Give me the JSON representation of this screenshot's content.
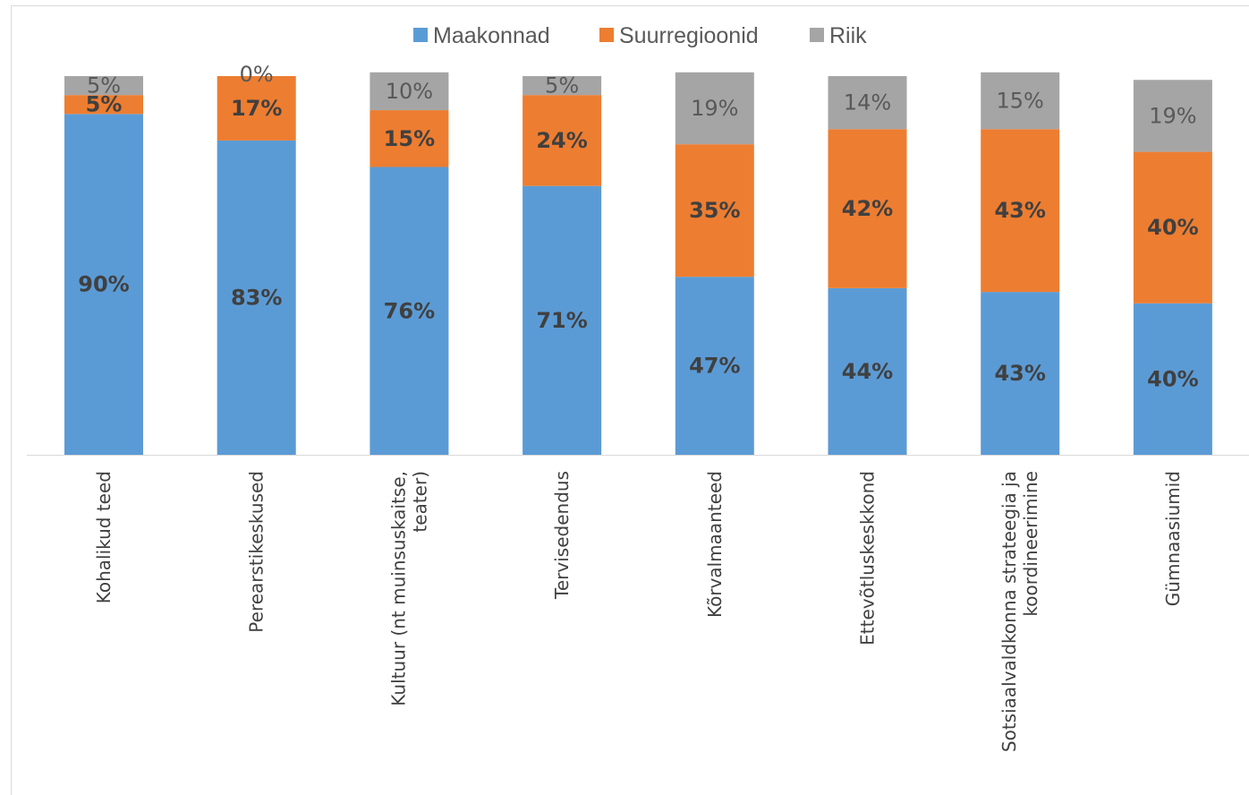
{
  "chart_data": {
    "type": "bar",
    "stacked": true,
    "percent_stacked": true,
    "categories": [
      "Kohalikud teed",
      "Perearstikeskused",
      "Kultuur (nt muinsuskaitse, teater)",
      "Tervisedendus",
      "Kõrvalmaanteed",
      "Ettevõtluskeskkond",
      "Sotsiaalvaldkonna strateegia ja koordineerimine",
      "Gümnaasiumid"
    ],
    "series": [
      {
        "name": "Maakonnad",
        "color": "#5B9BD5",
        "values": [
          90,
          83,
          76,
          71,
          47,
          44,
          43,
          40
        ],
        "labels": [
          "90%",
          "83%",
          "76%",
          "71%",
          "47%",
          "44%",
          "43%",
          "40%"
        ],
        "label_style": "bold"
      },
      {
        "name": "Suurregioonid",
        "color": "#ED7D31",
        "values": [
          5,
          17,
          15,
          24,
          35,
          42,
          43,
          40
        ],
        "labels": [
          "5%",
          "17%",
          "15%",
          "24%",
          "35%",
          "42%",
          "43%",
          "40%"
        ],
        "label_style": "bold"
      },
      {
        "name": "Riik",
        "color": "#A5A5A5",
        "values": [
          5,
          0,
          10,
          5,
          19,
          14,
          15,
          19
        ],
        "labels": [
          "5%",
          "0%",
          "10%",
          "5%",
          "19%",
          "14%",
          "15%",
          "19%"
        ],
        "label_style": "plain"
      }
    ],
    "ylim": [
      0,
      100
    ],
    "legend_position": "top",
    "grid": false
  }
}
